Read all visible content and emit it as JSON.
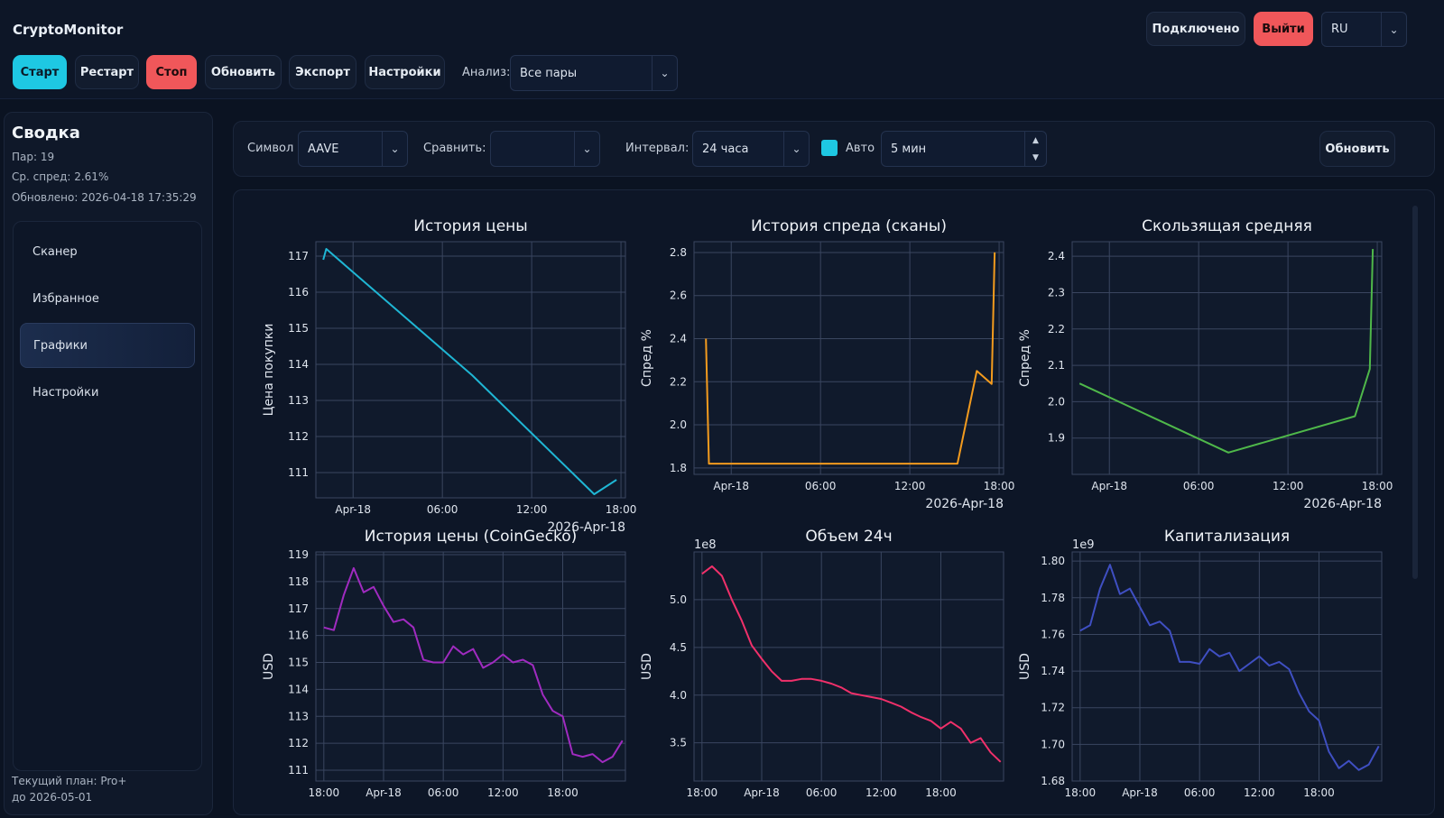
{
  "header": {
    "title": "CryptoMonitor",
    "buttons": {
      "start": "Старт",
      "restart": "Рестарт",
      "stop": "Стоп",
      "refresh": "Обновить",
      "export": "Экспорт",
      "settings": "Настройки"
    },
    "analysis_label": "Анализ:",
    "analysis_value": "Все пары",
    "status": "Подключено",
    "logout": "Выйти",
    "language": "RU"
  },
  "sidebar": {
    "summary_title": "Сводка",
    "pairs": "Пар: 19",
    "avg_spread": "Ср. спред: 2.61%",
    "updated": "Обновлено: 2026-04-18 17:35:29",
    "nav": [
      {
        "label": "Сканер"
      },
      {
        "label": "Избранное"
      },
      {
        "label": "Графики"
      },
      {
        "label": "Настройки"
      }
    ],
    "plan": "Текущий план: Pro+",
    "plan_until": "до 2026-05-01"
  },
  "controls": {
    "symbol_label": "Символ",
    "symbol_value": "AAVE",
    "compare_label": "Сравнить:",
    "compare_value": "",
    "interval_label": "Интервал:",
    "interval_value": "24 часа",
    "auto_label": "Авто",
    "auto_checked": true,
    "auto_period": "5 мин",
    "refresh": "Обновить"
  },
  "colors": {
    "accent": "#1ec8e3",
    "danger": "#f0575a",
    "price": "#1fb6d4",
    "spread": "#f39b1e",
    "ma": "#4fb84a",
    "cg_price": "#a02bc0",
    "volume": "#f0306a",
    "cap": "#3f4fc2"
  },
  "chart_data": [
    {
      "type": "line",
      "title": "История цены",
      "ylabel": "Цена покупки",
      "xlabel": "2026-Apr-18",
      "x_ticks": [
        "Apr-18",
        "06:00",
        "12:00",
        "18:00"
      ],
      "y_ticks": [
        111,
        112,
        113,
        114,
        115,
        116,
        117
      ],
      "ylim": [
        110.3,
        117.4
      ],
      "xlim": [
        -2.5,
        18.3
      ],
      "color": "#1fb6d4",
      "series": [
        {
          "x": [
            -2.0,
            -1.8,
            8.0,
            16.2,
            17.7
          ],
          "y": [
            116.9,
            117.2,
            113.7,
            110.4,
            110.8
          ]
        }
      ]
    },
    {
      "type": "line",
      "title": "История спреда (сканы)",
      "ylabel": "Спред %",
      "xlabel": "2026-Apr-18",
      "x_ticks": [
        "Apr-18",
        "06:00",
        "12:00",
        "18:00"
      ],
      "y_ticks": [
        1.8,
        2.0,
        2.2,
        2.4,
        2.6,
        2.8
      ],
      "ylim": [
        1.77,
        2.85
      ],
      "xlim": [
        -2.5,
        18.3
      ],
      "color": "#f39b1e",
      "series": [
        {
          "x": [
            -1.7,
            -1.5,
            8.0,
            15.2,
            16.5,
            17.5,
            17.7
          ],
          "y": [
            2.4,
            1.82,
            1.82,
            1.82,
            2.25,
            2.19,
            2.8
          ]
        }
      ]
    },
    {
      "type": "line",
      "title": "Скользящая средняя",
      "ylabel": "Спред %",
      "xlabel": "2026-Apr-18",
      "x_ticks": [
        "Apr-18",
        "06:00",
        "12:00",
        "18:00"
      ],
      "y_ticks": [
        1.9,
        2.0,
        2.1,
        2.2,
        2.3,
        2.4
      ],
      "ylim": [
        1.8,
        2.44
      ],
      "xlim": [
        -2.5,
        18.3
      ],
      "color": "#4fb84a",
      "series": [
        {
          "x": [
            -2.0,
            8.0,
            16.5,
            17.5,
            17.7
          ],
          "y": [
            2.05,
            1.86,
            1.96,
            2.09,
            2.42
          ]
        }
      ]
    },
    {
      "type": "line",
      "title": "История цены (CoinGecko)",
      "ylabel": "USD",
      "x_ticks": [
        "18:00",
        "Apr-18",
        "06:00",
        "12:00",
        "18:00"
      ],
      "y_ticks": [
        111,
        112,
        113,
        114,
        115,
        116,
        117,
        118,
        119
      ],
      "ylim": [
        110.6,
        119.1
      ],
      "xlim": [
        -6.8,
        24.3
      ],
      "color": "#a02bc0",
      "series": [
        {
          "x": [
            -6,
            -5,
            -4,
            -3,
            -2,
            -1,
            0,
            1,
            2,
            3,
            4,
            5,
            6,
            7,
            8,
            9,
            10,
            11,
            12,
            13,
            14,
            15,
            16,
            17,
            18,
            19,
            20,
            21,
            22,
            23,
            24
          ],
          "y": [
            116.3,
            116.2,
            117.5,
            118.5,
            117.6,
            117.8,
            117.1,
            116.5,
            116.6,
            116.3,
            115.1,
            115.0,
            115.0,
            115.6,
            115.3,
            115.5,
            114.8,
            115.0,
            115.3,
            115.0,
            115.1,
            114.9,
            113.8,
            113.2,
            113.0,
            111.6,
            111.5,
            111.6,
            111.3,
            111.5,
            112.1
          ]
        }
      ]
    },
    {
      "type": "line",
      "title": "Объем 24ч",
      "ylabel": "USD",
      "scale_label": "1e8",
      "x_ticks": [
        "18:00",
        "Apr-18",
        "06:00",
        "12:00",
        "18:00"
      ],
      "y_ticks": [
        3.5,
        4.0,
        4.5,
        5.0
      ],
      "ylim": [
        3.1,
        5.5
      ],
      "xlim": [
        -6.8,
        24.3
      ],
      "color": "#f0306a",
      "series": [
        {
          "x": [
            -6,
            -5,
            -4,
            -3,
            -2,
            -1,
            0,
            1,
            2,
            3,
            4,
            5,
            6,
            7,
            8,
            9,
            10,
            11,
            12,
            13,
            14,
            15,
            16,
            17,
            18,
            19,
            20,
            21,
            22,
            23,
            24
          ],
          "y": [
            5.27,
            5.35,
            5.25,
            5.0,
            4.78,
            4.52,
            4.38,
            4.25,
            4.15,
            4.15,
            4.17,
            4.17,
            4.15,
            4.12,
            4.08,
            4.02,
            4.0,
            3.98,
            3.96,
            3.92,
            3.88,
            3.82,
            3.77,
            3.73,
            3.65,
            3.72,
            3.65,
            3.5,
            3.55,
            3.4,
            3.3
          ]
        }
      ]
    },
    {
      "type": "line",
      "title": "Капитализация",
      "ylabel": "USD",
      "scale_label": "1e9",
      "x_ticks": [
        "18:00",
        "Apr-18",
        "06:00",
        "12:00",
        "18:00"
      ],
      "y_ticks": [
        1.68,
        1.7,
        1.72,
        1.74,
        1.76,
        1.78,
        1.8
      ],
      "ylim": [
        1.68,
        1.805
      ],
      "xlim": [
        -6.8,
        24.3
      ],
      "color": "#3f4fc2",
      "series": [
        {
          "x": [
            -6,
            -5,
            -4,
            -3,
            -2,
            -1,
            0,
            1,
            2,
            3,
            4,
            5,
            6,
            7,
            8,
            9,
            10,
            11,
            12,
            13,
            14,
            15,
            16,
            17,
            18,
            19,
            20,
            21,
            22,
            23,
            24
          ],
          "y": [
            1.762,
            1.765,
            1.785,
            1.798,
            1.782,
            1.785,
            1.775,
            1.765,
            1.767,
            1.762,
            1.745,
            1.745,
            1.744,
            1.752,
            1.748,
            1.75,
            1.74,
            1.744,
            1.748,
            1.743,
            1.745,
            1.741,
            1.728,
            1.718,
            1.713,
            1.696,
            1.687,
            1.691,
            1.686,
            1.689,
            1.699
          ]
        }
      ]
    }
  ]
}
